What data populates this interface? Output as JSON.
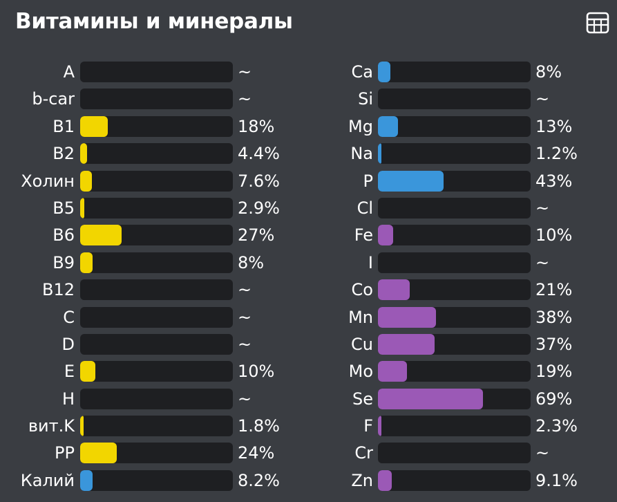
{
  "header": {
    "title": "Витамины и минералы",
    "table_icon": "table-grid-icon"
  },
  "colors": {
    "vitamin": "#f2d600",
    "potassium": "#3a96db",
    "mineral_blue": "#3a96db",
    "mineral_purple": "#9b59b6",
    "bar_track": "#1e1f22"
  },
  "vitamins": [
    {
      "label": "A",
      "value": "~",
      "fraction": 0,
      "color": "vitamin"
    },
    {
      "label": "b-car",
      "value": "~",
      "fraction": 0,
      "color": "vitamin"
    },
    {
      "label": "B1",
      "value": "18%",
      "fraction": 0.18,
      "color": "vitamin"
    },
    {
      "label": "B2",
      "value": "4.4%",
      "fraction": 0.044,
      "color": "vitamin"
    },
    {
      "label": "Холин",
      "value": "7.6%",
      "fraction": 0.076,
      "color": "vitamin"
    },
    {
      "label": "B5",
      "value": "2.9%",
      "fraction": 0.029,
      "color": "vitamin"
    },
    {
      "label": "B6",
      "value": "27%",
      "fraction": 0.27,
      "color": "vitamin"
    },
    {
      "label": "B9",
      "value": "8%",
      "fraction": 0.08,
      "color": "vitamin"
    },
    {
      "label": "B12",
      "value": "~",
      "fraction": 0,
      "color": "vitamin"
    },
    {
      "label": "C",
      "value": "~",
      "fraction": 0,
      "color": "vitamin"
    },
    {
      "label": "D",
      "value": "~",
      "fraction": 0,
      "color": "vitamin"
    },
    {
      "label": "E",
      "value": "10%",
      "fraction": 0.1,
      "color": "vitamin"
    },
    {
      "label": "H",
      "value": "~",
      "fraction": 0,
      "color": "vitamin"
    },
    {
      "label": "вит.K",
      "value": "1.8%",
      "fraction": 0.018,
      "color": "vitamin"
    },
    {
      "label": "PP",
      "value": "24%",
      "fraction": 0.24,
      "color": "vitamin"
    },
    {
      "label": "Калий",
      "value": "8.2%",
      "fraction": 0.082,
      "color": "potassium"
    }
  ],
  "minerals": [
    {
      "label": "Ca",
      "value": "8%",
      "fraction": 0.08,
      "color": "mineral_blue"
    },
    {
      "label": "Si",
      "value": "~",
      "fraction": 0,
      "color": "mineral_blue"
    },
    {
      "label": "Mg",
      "value": "13%",
      "fraction": 0.13,
      "color": "mineral_blue"
    },
    {
      "label": "Na",
      "value": "1.2%",
      "fraction": 0.012,
      "color": "mineral_blue"
    },
    {
      "label": "P",
      "value": "43%",
      "fraction": 0.43,
      "color": "mineral_blue"
    },
    {
      "label": "Cl",
      "value": "~",
      "fraction": 0,
      "color": "mineral_blue"
    },
    {
      "label": "Fe",
      "value": "10%",
      "fraction": 0.1,
      "color": "mineral_purple"
    },
    {
      "label": "I",
      "value": "~",
      "fraction": 0,
      "color": "mineral_purple"
    },
    {
      "label": "Co",
      "value": "21%",
      "fraction": 0.21,
      "color": "mineral_purple"
    },
    {
      "label": "Mn",
      "value": "38%",
      "fraction": 0.38,
      "color": "mineral_purple"
    },
    {
      "label": "Cu",
      "value": "37%",
      "fraction": 0.37,
      "color": "mineral_purple"
    },
    {
      "label": "Mo",
      "value": "19%",
      "fraction": 0.19,
      "color": "mineral_purple"
    },
    {
      "label": "Se",
      "value": "69%",
      "fraction": 0.69,
      "color": "mineral_purple"
    },
    {
      "label": "F",
      "value": "2.3%",
      "fraction": 0.023,
      "color": "mineral_purple"
    },
    {
      "label": "Cr",
      "value": "~",
      "fraction": 0,
      "color": "mineral_purple"
    },
    {
      "label": "Zn",
      "value": "9.1%",
      "fraction": 0.091,
      "color": "mineral_purple"
    }
  ]
}
